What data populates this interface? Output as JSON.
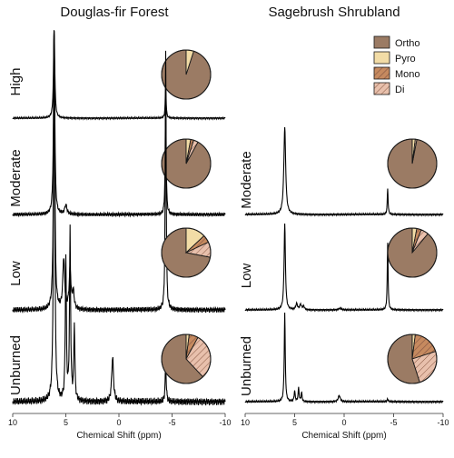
{
  "chart_data": {
    "type": "line",
    "panels": [
      {
        "title": "Douglas-fir Forest",
        "xlabel": "Chemical Shift (ppm)",
        "xticks": [
          "10",
          "5",
          "0",
          "-5",
          "-10"
        ],
        "xlim": [
          10,
          -10
        ],
        "rows": [
          {
            "label": "High",
            "peaks": [
              {
                "x": 6.1,
                "y": 1.0,
                "w": 0.07
              },
              {
                "x": -4.4,
                "y": 0.36,
                "w": 0.05
              }
            ],
            "pie": {
              "Ortho": 95,
              "Pyro": 5,
              "Mono": 0,
              "Di": 0
            }
          },
          {
            "label": "Moderate",
            "peaks": [
              {
                "x": 6.1,
                "y": 1.0,
                "w": 0.07
              },
              {
                "x": 5.0,
                "y": 0.05,
                "w": 0.12
              },
              {
                "x": -4.4,
                "y": 0.68,
                "w": 0.05
              }
            ],
            "pie": {
              "Ortho": 92,
              "Pyro": 3,
              "Mono": 2,
              "Di": 3
            }
          },
          {
            "label": "Low",
            "peaks": [
              {
                "x": 6.1,
                "y": 1.0,
                "w": 0.07
              },
              {
                "x": 5.2,
                "y": 0.18,
                "w": 0.1
              },
              {
                "x": 4.6,
                "y": 0.14,
                "w": 0.1
              },
              {
                "x": 4.3,
                "y": 0.06,
                "w": 0.1
              },
              {
                "x": -4.4,
                "y": 0.92,
                "w": 0.05
              }
            ],
            "pie": {
              "Ortho": 72,
              "Pyro": 13,
              "Mono": 5,
              "Di": 10
            }
          },
          {
            "label": "Unburned",
            "peaks": [
              {
                "x": 6.1,
                "y": 1.0,
                "w": 0.07
              },
              {
                "x": 5.0,
                "y": 0.38,
                "w": 0.06
              },
              {
                "x": 4.6,
                "y": 0.45,
                "w": 0.06
              },
              {
                "x": 4.2,
                "y": 0.2,
                "w": 0.06
              },
              {
                "x": 0.6,
                "y": 0.12,
                "w": 0.1
              },
              {
                "x": -4.4,
                "y": 0.1,
                "w": 0.06
              }
            ],
            "pie": {
              "Ortho": 62,
              "Pyro": 2,
              "Mono": 6,
              "Di": 30
            }
          }
        ]
      },
      {
        "title": "Sagebrush Shrubland",
        "xlabel": "Chemical Shift (ppm)",
        "xticks": [
          "10",
          "5",
          "0",
          "-5",
          "-10"
        ],
        "xlim": [
          10,
          -10
        ],
        "rows": [
          {
            "label": "Moderate",
            "peaks": [
              {
                "x": 6.0,
                "y": 1.0,
                "w": 0.11
              },
              {
                "x": -4.4,
                "y": 0.3,
                "w": 0.05
              }
            ],
            "pie": {
              "Ortho": 97,
              "Pyro": 2,
              "Mono": 0,
              "Di": 1
            }
          },
          {
            "label": "Low",
            "peaks": [
              {
                "x": 6.0,
                "y": 1.0,
                "w": 0.08
              },
              {
                "x": 4.8,
                "y": 0.07,
                "w": 0.1
              },
              {
                "x": 4.4,
                "y": 0.06,
                "w": 0.1
              },
              {
                "x": 4.1,
                "y": 0.04,
                "w": 0.1
              },
              {
                "x": 0.4,
                "y": 0.02,
                "w": 0.15
              },
              {
                "x": -4.4,
                "y": 0.78,
                "w": 0.05
              }
            ],
            "pie": {
              "Ortho": 89,
              "Pyro": 3,
              "Mono": 3,
              "Di": 5
            }
          },
          {
            "label": "Unburned",
            "peaks": [
              {
                "x": 6.0,
                "y": 1.0,
                "w": 0.06
              },
              {
                "x": 5.0,
                "y": 0.12,
                "w": 0.06
              },
              {
                "x": 4.6,
                "y": 0.15,
                "w": 0.06
              },
              {
                "x": 4.3,
                "y": 0.1,
                "w": 0.06
              },
              {
                "x": 0.5,
                "y": 0.07,
                "w": 0.12
              },
              {
                "x": -4.4,
                "y": 0.03,
                "w": 0.06
              }
            ],
            "pie": {
              "Ortho": 55,
              "Pyro": 2,
              "Mono": 18,
              "Di": 25
            }
          }
        ]
      }
    ],
    "legend": [
      "Ortho",
      "Pyro",
      "Mono",
      "Di"
    ],
    "colors": {
      "Ortho": "#9b7b64",
      "Pyro": "#f2dca6",
      "Mono": "#c68a5f",
      "Di": "#e8c0ac",
      "hatch": "#8a5a45",
      "line": "#000000"
    },
    "legend_position": "top-right"
  }
}
